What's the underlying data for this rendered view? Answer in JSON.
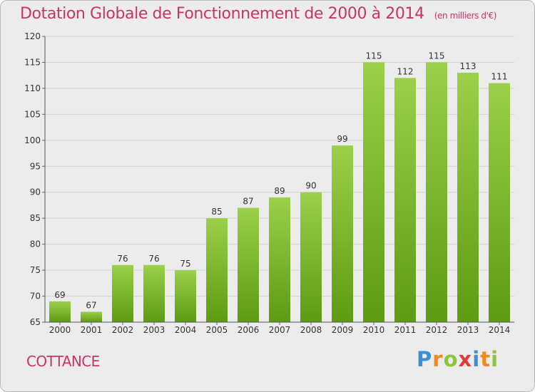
{
  "title": "Dotation Globale de Fonctionnement de 2000 à 2014",
  "subtitle": "(en milliers d'€)",
  "commune": "COTTANCE",
  "logo": {
    "text": "Proxiti"
  },
  "colors": {
    "bar_top": "#9ad04a",
    "bar_bottom": "#5e9a14",
    "title": "#c8336a",
    "background": "#ececec",
    "grid": "#d2d2d2"
  },
  "chart_data": {
    "type": "bar",
    "categories": [
      "2000",
      "2001",
      "2002",
      "2003",
      "2004",
      "2005",
      "2006",
      "2007",
      "2008",
      "2009",
      "2010",
      "2011",
      "2012",
      "2013",
      "2014"
    ],
    "values": [
      69,
      67,
      76,
      76,
      75,
      85,
      87,
      89,
      90,
      99,
      115,
      112,
      115,
      113,
      111
    ],
    "ylim": [
      65,
      120
    ],
    "yticks": [
      65,
      70,
      75,
      80,
      85,
      90,
      95,
      100,
      105,
      110,
      115,
      120
    ],
    "grid": true,
    "legend": "none"
  }
}
